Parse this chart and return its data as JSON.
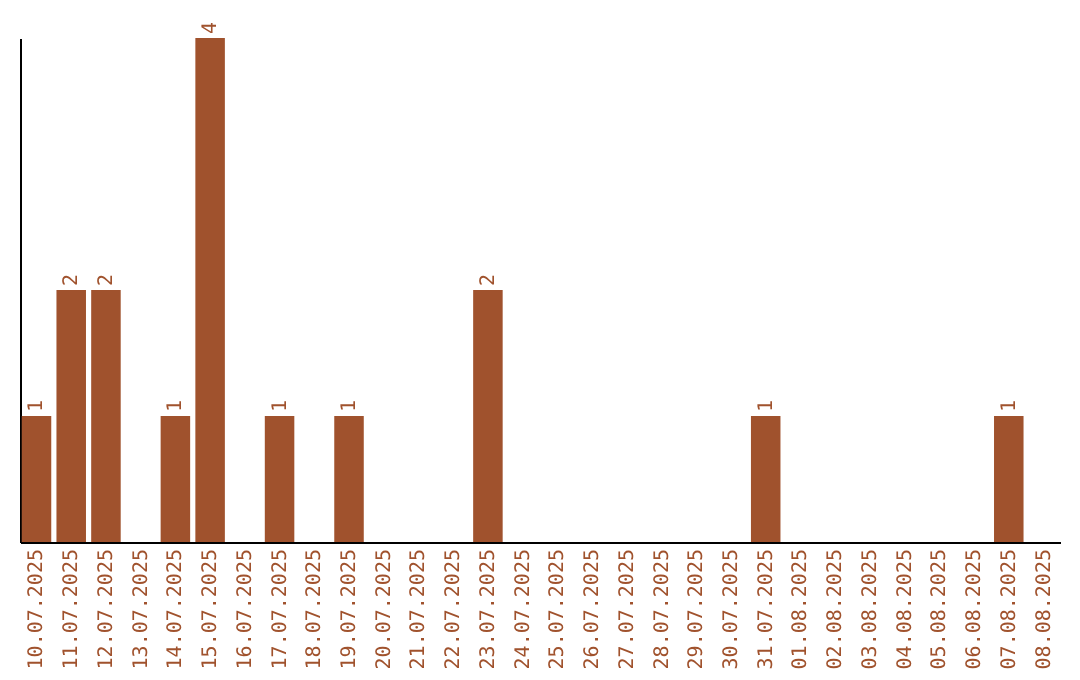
{
  "chart_data": {
    "type": "bar",
    "categories": [
      "10.07.2025",
      "11.07.2025",
      "12.07.2025",
      "13.07.2025",
      "14.07.2025",
      "15.07.2025",
      "16.07.2025",
      "17.07.2025",
      "18.07.2025",
      "19.07.2025",
      "20.07.2025",
      "21.07.2025",
      "22.07.2025",
      "23.07.2025",
      "24.07.2025",
      "25.07.2025",
      "26.07.2025",
      "27.07.2025",
      "28.07.2025",
      "29.07.2025",
      "30.07.2025",
      "31.07.2025",
      "01.08.2025",
      "02.08.2025",
      "03.08.2025",
      "04.08.2025",
      "05.08.2025",
      "06.08.2025",
      "07.08.2025",
      "08.08.2025"
    ],
    "values": [
      1,
      2,
      2,
      0,
      1,
      4,
      0,
      1,
      0,
      1,
      0,
      0,
      0,
      2,
      0,
      0,
      0,
      0,
      0,
      0,
      0,
      1,
      0,
      0,
      0,
      0,
      0,
      0,
      1,
      0
    ],
    "value_labels": [
      "1",
      "2",
      "2",
      null,
      "1",
      "4",
      null,
      "1",
      null,
      "1",
      null,
      null,
      null,
      "2",
      null,
      null,
      null,
      null,
      null,
      null,
      null,
      "1",
      null,
      null,
      null,
      null,
      null,
      null,
      "1",
      null
    ],
    "color": "#a0522d",
    "tick_labels": "x"
  }
}
